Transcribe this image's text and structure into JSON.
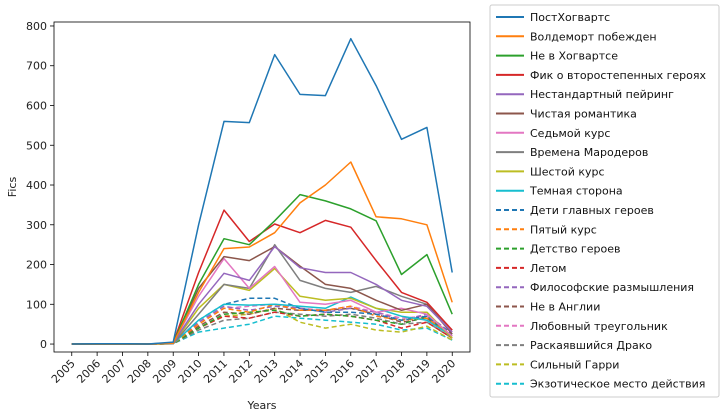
{
  "chart_data": {
    "type": "line",
    "title": "",
    "xlabel": "Years",
    "ylabel": "Fics",
    "x": [
      2005,
      2006,
      2007,
      2008,
      2009,
      2010,
      2011,
      2012,
      2013,
      2014,
      2015,
      2016,
      2017,
      2018,
      2019,
      2020
    ],
    "x_tick_labels": [
      "2005",
      "2006",
      "2007",
      "2008",
      "2009",
      "2010",
      "2011",
      "2012",
      "2013",
      "2014",
      "2015",
      "2016",
      "2017",
      "2018",
      "2019",
      "2020"
    ],
    "ylim": [
      -20,
      810
    ],
    "y_ticks": [
      0,
      100,
      200,
      300,
      400,
      500,
      600,
      700,
      800
    ],
    "y_tick_labels": [
      "0",
      "100",
      "200",
      "300",
      "400",
      "500",
      "600",
      "700",
      "800"
    ],
    "grid": false,
    "legend_position": "right",
    "series": [
      {
        "name": "ПостХогвартс",
        "color": "#1f77b4",
        "dash": "solid",
        "values": [
          0,
          1,
          1,
          0,
          5,
          300,
          560,
          557,
          728,
          628,
          625,
          768,
          650,
          515,
          545,
          180
        ]
      },
      {
        "name": "Волдеморт побежден",
        "color": "#ff7f0e",
        "dash": "solid",
        "values": [
          0,
          0,
          0,
          0,
          2,
          130,
          240,
          244,
          280,
          355,
          400,
          458,
          320,
          315,
          300,
          105
        ]
      },
      {
        "name": "Не в Хогвартсе",
        "color": "#2ca02c",
        "dash": "solid",
        "values": [
          0,
          0,
          0,
          0,
          2,
          150,
          265,
          250,
          310,
          376,
          360,
          340,
          310,
          175,
          225,
          75
        ]
      },
      {
        "name": "Фик о второстепенных героях",
        "color": "#d62728",
        "dash": "solid",
        "values": [
          0,
          0,
          0,
          0,
          3,
          180,
          337,
          258,
          302,
          280,
          311,
          294,
          210,
          130,
          105,
          35
        ]
      },
      {
        "name": "Нестандартный пейринг",
        "color": "#9467bd",
        "dash": "solid",
        "values": [
          0,
          0,
          0,
          0,
          2,
          100,
          178,
          160,
          245,
          192,
          180,
          180,
          150,
          110,
          95,
          30
        ]
      },
      {
        "name": "Чистая романтика",
        "color": "#8c564b",
        "dash": "solid",
        "values": [
          0,
          0,
          0,
          0,
          2,
          140,
          220,
          210,
          245,
          196,
          150,
          140,
          110,
          85,
          100,
          25
        ]
      },
      {
        "name": "Седьмой курс",
        "color": "#e377c2",
        "dash": "solid",
        "values": [
          0,
          0,
          0,
          0,
          2,
          120,
          215,
          140,
          195,
          105,
          100,
          110,
          80,
          90,
          75,
          20
        ]
      },
      {
        "name": "Времена Мародеров",
        "color": "#7f7f7f",
        "dash": "solid",
        "values": [
          0,
          0,
          0,
          0,
          1,
          75,
          150,
          140,
          250,
          160,
          140,
          130,
          145,
          120,
          100,
          35
        ]
      },
      {
        "name": "Шестой курс",
        "color": "#bcbd22",
        "dash": "solid",
        "values": [
          0,
          0,
          0,
          0,
          1,
          90,
          150,
          135,
          190,
          120,
          110,
          115,
          90,
          80,
          80,
          15
        ]
      },
      {
        "name": "Темная сторона",
        "color": "#17becf",
        "dash": "solid",
        "values": [
          0,
          0,
          0,
          0,
          1,
          60,
          100,
          98,
          100,
          95,
          90,
          118,
          90,
          70,
          60,
          20
        ]
      },
      {
        "name": "Дети главных героев",
        "color": "#1f77b4",
        "dash": "dashed",
        "values": [
          0,
          0,
          0,
          0,
          1,
          60,
          100,
          115,
          115,
          90,
          80,
          80,
          75,
          60,
          70,
          25
        ]
      },
      {
        "name": "Пятый курс",
        "color": "#ff7f0e",
        "dash": "dashed",
        "values": [
          0,
          0,
          0,
          0,
          1,
          50,
          90,
          80,
          100,
          85,
          85,
          95,
          70,
          60,
          65,
          20
        ]
      },
      {
        "name": "Детство героев",
        "color": "#2ca02c",
        "dash": "dashed",
        "values": [
          0,
          0,
          0,
          0,
          1,
          40,
          75,
          80,
          85,
          70,
          75,
          70,
          60,
          50,
          70,
          20
        ]
      },
      {
        "name": "Летом",
        "color": "#d62728",
        "dash": "dashed",
        "values": [
          0,
          0,
          0,
          0,
          1,
          40,
          70,
          65,
          80,
          70,
          75,
          70,
          60,
          40,
          55,
          15
        ]
      },
      {
        "name": "Философские размышления",
        "color": "#9467bd",
        "dash": "dashed",
        "values": [
          0,
          0,
          0,
          0,
          1,
          55,
          95,
          85,
          95,
          90,
          80,
          90,
          80,
          60,
          75,
          25
        ]
      },
      {
        "name": "Не в Англии",
        "color": "#8c564b",
        "dash": "dashed",
        "values": [
          0,
          0,
          0,
          0,
          1,
          45,
          80,
          75,
          90,
          85,
          85,
          90,
          75,
          55,
          65,
          20
        ]
      },
      {
        "name": "Любовный треугольник",
        "color": "#e377c2",
        "dash": "dashed",
        "values": [
          0,
          0,
          0,
          0,
          1,
          55,
          90,
          95,
          100,
          90,
          85,
          95,
          80,
          65,
          70,
          20
        ]
      },
      {
        "name": "Раскаявшийся Драко",
        "color": "#7f7f7f",
        "dash": "dashed",
        "values": [
          0,
          0,
          0,
          0,
          1,
          35,
          60,
          65,
          80,
          75,
          70,
          75,
          65,
          50,
          55,
          15
        ]
      },
      {
        "name": "Сильный Гарри",
        "color": "#bcbd22",
        "dash": "dashed",
        "values": [
          0,
          0,
          0,
          0,
          1,
          40,
          70,
          75,
          90,
          55,
          40,
          50,
          35,
          30,
          45,
          10
        ]
      },
      {
        "name": "Экзотическое место действия",
        "color": "#17becf",
        "dash": "dashed",
        "values": [
          0,
          0,
          0,
          0,
          1,
          30,
          40,
          50,
          70,
          65,
          60,
          55,
          50,
          35,
          40,
          10
        ]
      }
    ]
  }
}
